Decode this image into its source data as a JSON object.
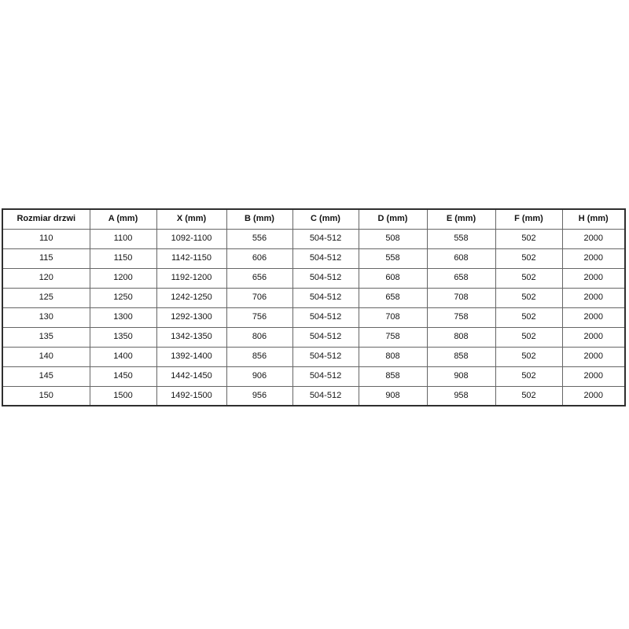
{
  "page": {
    "background": "#ffffff"
  },
  "colors": {
    "page_bg": "#ffffff",
    "table_border_outer": "#2f2f2f",
    "table_border_inner": "#666666",
    "header_bg": "#ffffff",
    "text": "#141414"
  },
  "chart_data": {
    "type": "table",
    "columns": [
      "Rozmiar drzwi",
      "A (mm)",
      "X (mm)",
      "B (mm)",
      "C (mm)",
      "D (mm)",
      "E (mm)",
      "F (mm)",
      "H (mm)"
    ],
    "rows": [
      [
        "110",
        "1100",
        "1092-1100",
        "556",
        "504-512",
        "508",
        "558",
        "502",
        "2000"
      ],
      [
        "115",
        "1150",
        "1142-1150",
        "606",
        "504-512",
        "558",
        "608",
        "502",
        "2000"
      ],
      [
        "120",
        "1200",
        "1192-1200",
        "656",
        "504-512",
        "608",
        "658",
        "502",
        "2000"
      ],
      [
        "125",
        "1250",
        "1242-1250",
        "706",
        "504-512",
        "658",
        "708",
        "502",
        "2000"
      ],
      [
        "130",
        "1300",
        "1292-1300",
        "756",
        "504-512",
        "708",
        "758",
        "502",
        "2000"
      ],
      [
        "135",
        "1350",
        "1342-1350",
        "806",
        "504-512",
        "758",
        "808",
        "502",
        "2000"
      ],
      [
        "140",
        "1400",
        "1392-1400",
        "856",
        "504-512",
        "808",
        "858",
        "502",
        "2000"
      ],
      [
        "145",
        "1450",
        "1442-1450",
        "906",
        "504-512",
        "858",
        "908",
        "502",
        "2000"
      ],
      [
        "150",
        "1500",
        "1492-1500",
        "956",
        "504-512",
        "908",
        "958",
        "502",
        "2000"
      ]
    ],
    "layout": {
      "grid": true,
      "header_bold": true,
      "cell_alignment": "center"
    }
  }
}
